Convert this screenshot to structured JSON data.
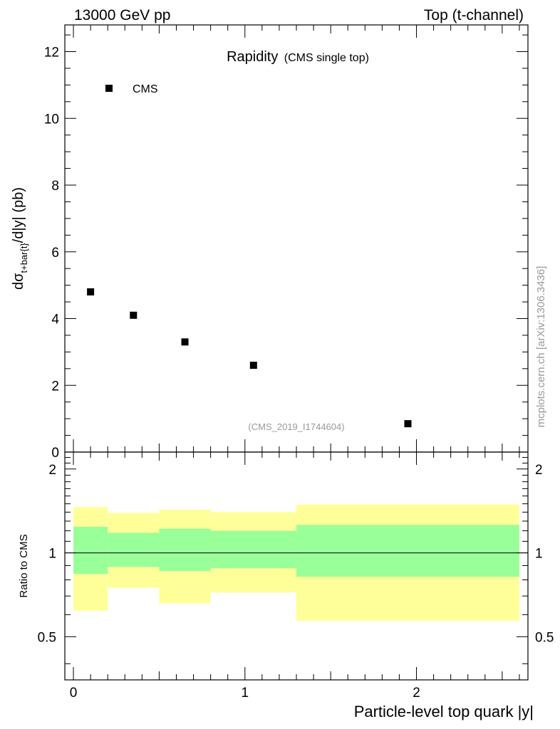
{
  "header": {
    "left": "13000 GeV pp",
    "right": "Top (t-channel)"
  },
  "plot_title": {
    "main": "Rapidity",
    "sub": "(CMS single top)"
  },
  "watermark": "mcplots.cern.ch [arXiv:1306.3436]",
  "analysis_id": "(CMS_2019_I1744604)",
  "chart_data": [
    {
      "type": "scatter",
      "panel": "main",
      "ylabel_parts": {
        "base": "dσ",
        "sub": "t+bar{t}",
        "rest": "/d|y|  (pb)"
      },
      "ylim": [
        0,
        12.8
      ],
      "xlim": [
        -0.05,
        2.65
      ],
      "yticks": [
        0,
        2,
        4,
        6,
        8,
        10,
        12
      ],
      "ytick_labels": [
        "0",
        "2",
        "4",
        "6",
        "8",
        "10",
        "12"
      ],
      "legend": {
        "label": "CMS",
        "placement": "top-left"
      },
      "series": [
        {
          "name": "CMS",
          "x": [
            0.1,
            0.35,
            0.65,
            1.05,
            1.95
          ],
          "y": [
            4.8,
            4.1,
            3.3,
            2.6,
            0.85
          ]
        }
      ]
    },
    {
      "type": "area",
      "panel": "ratio",
      "ylabel": "Ratio to CMS",
      "xlabel": "Particle-level top quark |y|",
      "yscale": "log",
      "ylim": [
        0.35,
        2.3
      ],
      "xlim": [
        -0.05,
        2.65
      ],
      "yticks": [
        0.5,
        1,
        2
      ],
      "ytick_labels": [
        "0.5",
        "1",
        "2"
      ],
      "xticks": [
        0,
        1,
        2
      ],
      "xtick_labels": [
        "0",
        "1",
        "2"
      ],
      "bins": [
        [
          0,
          0.2
        ],
        [
          0.2,
          0.5
        ],
        [
          0.5,
          0.8
        ],
        [
          0.8,
          1.3
        ],
        [
          1.3,
          2.6
        ]
      ],
      "band_outer": {
        "low": [
          0.62,
          0.75,
          0.66,
          0.72,
          0.57
        ],
        "high": [
          1.46,
          1.39,
          1.43,
          1.4,
          1.49
        ]
      },
      "band_inner": {
        "low": [
          0.84,
          0.89,
          0.86,
          0.88,
          0.82
        ],
        "high": [
          1.24,
          1.18,
          1.22,
          1.2,
          1.26
        ]
      },
      "reference_line": 1,
      "colors": {
        "outer": "#ffff99",
        "inner": "#99ff99"
      }
    }
  ]
}
